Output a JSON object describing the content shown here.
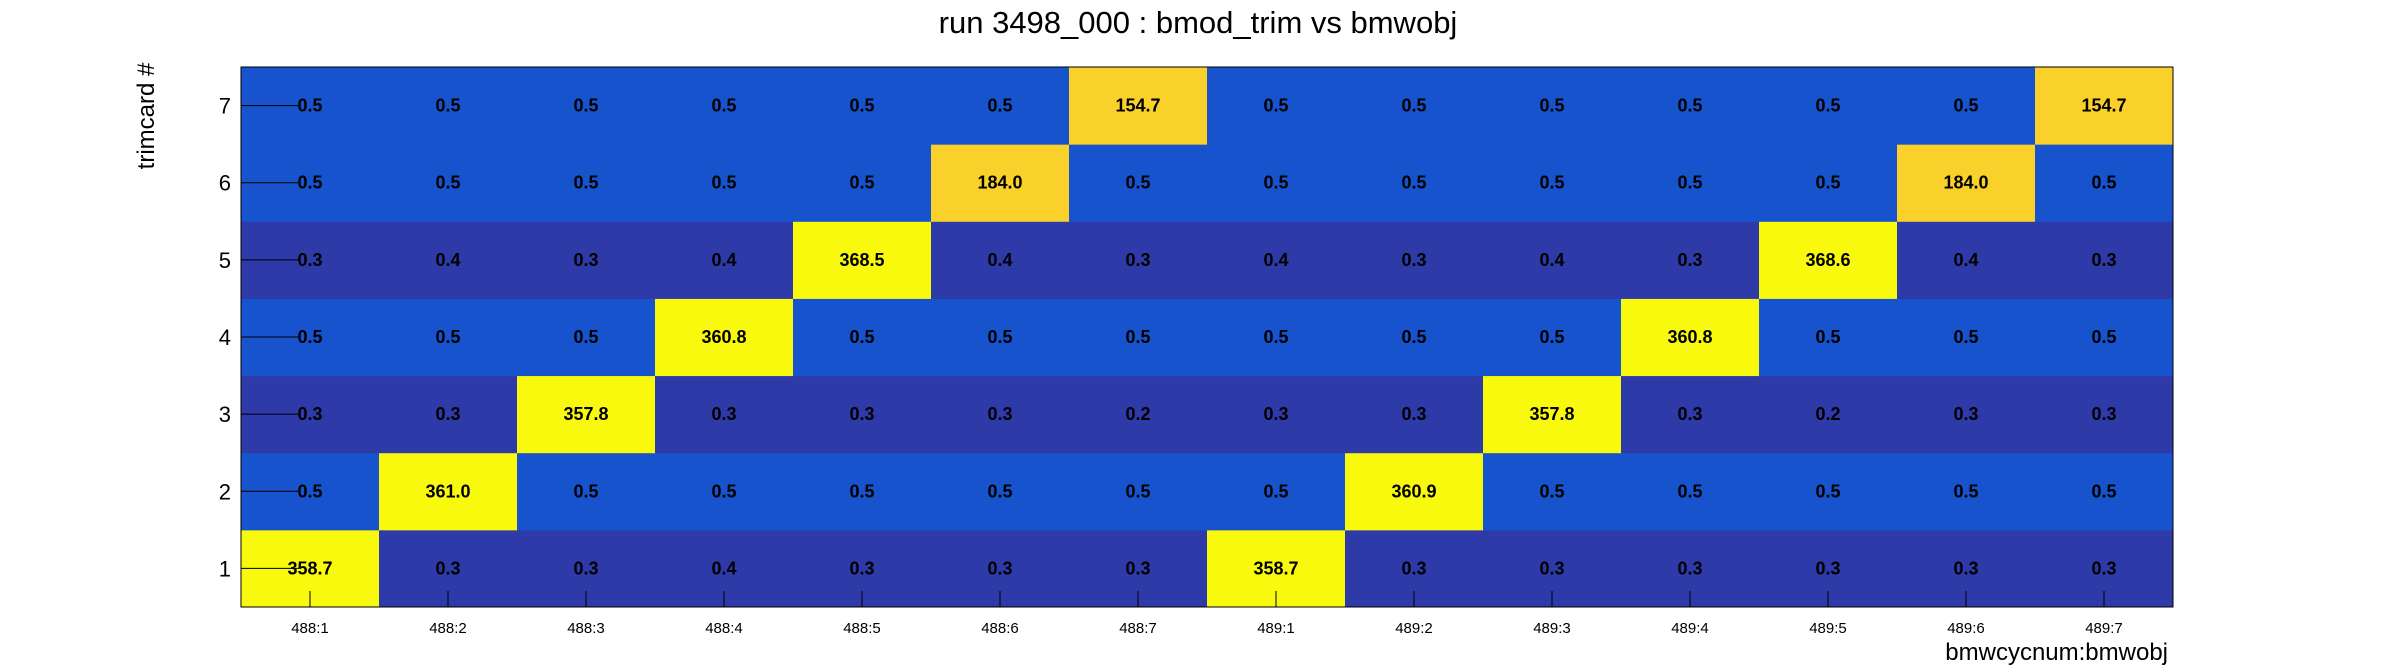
{
  "chart_data": {
    "type": "heatmap",
    "title": "run 3498_000 : bmod_trim vs bmwobj",
    "xlabel": "bmwcycnum:bmwobj",
    "ylabel": "trimcard #",
    "x_categories": [
      "488:1",
      "488:2",
      "488:3",
      "488:4",
      "488:5",
      "488:6",
      "488:7",
      "489:1",
      "489:2",
      "489:3",
      "489:4",
      "489:5",
      "489:6",
      "489:7"
    ],
    "y_categories": [
      "1",
      "2",
      "3",
      "4",
      "5",
      "6",
      "7"
    ],
    "values": [
      [
        358.7,
        0.3,
        0.3,
        0.4,
        0.3,
        0.3,
        0.3,
        358.7,
        0.3,
        0.3,
        0.3,
        0.3,
        0.3,
        0.3
      ],
      [
        0.5,
        361.0,
        0.5,
        0.5,
        0.5,
        0.5,
        0.5,
        0.5,
        360.9,
        0.5,
        0.5,
        0.5,
        0.5,
        0.5
      ],
      [
        0.3,
        0.3,
        357.8,
        0.3,
        0.3,
        0.3,
        0.2,
        0.3,
        0.3,
        357.8,
        0.3,
        0.2,
        0.3,
        0.3
      ],
      [
        0.5,
        0.5,
        0.5,
        360.8,
        0.5,
        0.5,
        0.5,
        0.5,
        0.5,
        0.5,
        360.8,
        0.5,
        0.5,
        0.5
      ],
      [
        0.3,
        0.4,
        0.3,
        0.4,
        368.5,
        0.4,
        0.3,
        0.4,
        0.3,
        0.4,
        0.3,
        368.6,
        0.4,
        0.3
      ],
      [
        0.5,
        0.5,
        0.5,
        0.5,
        0.5,
        184.0,
        0.5,
        0.5,
        0.5,
        0.5,
        0.5,
        0.5,
        184.0,
        0.5
      ],
      [
        0.5,
        0.5,
        0.5,
        0.5,
        0.5,
        0.5,
        154.7,
        0.5,
        0.5,
        0.5,
        0.5,
        0.5,
        0.5,
        154.7
      ]
    ],
    "color_scale": {
      "high_colors": [
        "#f9f90e",
        "#fad02a"
      ],
      "low_colors": [
        "#1753cc",
        "#2e3aa8"
      ]
    }
  }
}
